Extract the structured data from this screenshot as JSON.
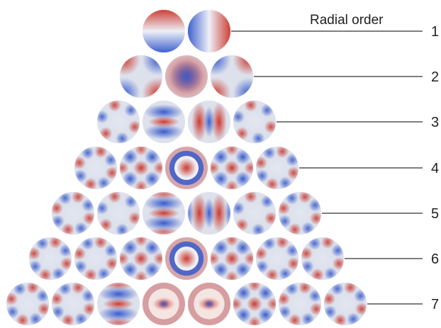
{
  "title": "Radial order",
  "colors": {
    "cold": "#3a5ccc",
    "neutral": "#dde1ec",
    "warm": "#cc3a30",
    "line": "#333333"
  },
  "rows": [
    {
      "order": "1",
      "count": 2
    },
    {
      "order": "2",
      "count": 3
    },
    {
      "order": "3",
      "count": 4
    },
    {
      "order": "4",
      "count": 5
    },
    {
      "order": "5",
      "count": 6
    },
    {
      "order": "6",
      "count": 7
    },
    {
      "order": "7",
      "count": 8
    }
  ]
}
